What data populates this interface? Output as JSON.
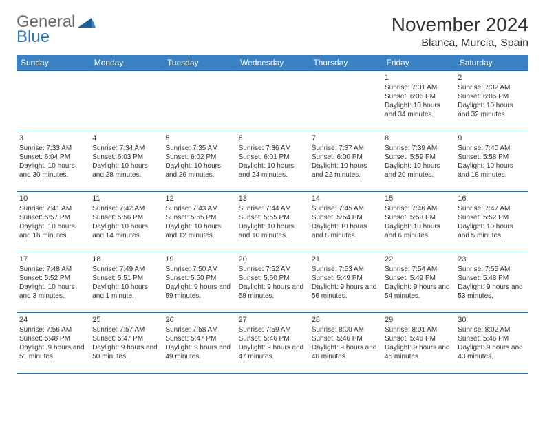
{
  "logo": {
    "text1": "General",
    "text2": "Blue"
  },
  "title": "November 2024",
  "location": "Blanca, Murcia, Spain",
  "colors": {
    "header_bg": "#3a81c4",
    "border": "#2f6ea8",
    "logo_gray": "#6b6b6b",
    "logo_blue": "#2f77b8"
  },
  "day_headers": [
    "Sunday",
    "Monday",
    "Tuesday",
    "Wednesday",
    "Thursday",
    "Friday",
    "Saturday"
  ],
  "weeks": [
    [
      null,
      null,
      null,
      null,
      null,
      {
        "n": "1",
        "sunrise": "Sunrise: 7:31 AM",
        "sunset": "Sunset: 6:06 PM",
        "day": "Daylight: 10 hours and 34 minutes."
      },
      {
        "n": "2",
        "sunrise": "Sunrise: 7:32 AM",
        "sunset": "Sunset: 6:05 PM",
        "day": "Daylight: 10 hours and 32 minutes."
      }
    ],
    [
      {
        "n": "3",
        "sunrise": "Sunrise: 7:33 AM",
        "sunset": "Sunset: 6:04 PM",
        "day": "Daylight: 10 hours and 30 minutes."
      },
      {
        "n": "4",
        "sunrise": "Sunrise: 7:34 AM",
        "sunset": "Sunset: 6:03 PM",
        "day": "Daylight: 10 hours and 28 minutes."
      },
      {
        "n": "5",
        "sunrise": "Sunrise: 7:35 AM",
        "sunset": "Sunset: 6:02 PM",
        "day": "Daylight: 10 hours and 26 minutes."
      },
      {
        "n": "6",
        "sunrise": "Sunrise: 7:36 AM",
        "sunset": "Sunset: 6:01 PM",
        "day": "Daylight: 10 hours and 24 minutes."
      },
      {
        "n": "7",
        "sunrise": "Sunrise: 7:37 AM",
        "sunset": "Sunset: 6:00 PM",
        "day": "Daylight: 10 hours and 22 minutes."
      },
      {
        "n": "8",
        "sunrise": "Sunrise: 7:39 AM",
        "sunset": "Sunset: 5:59 PM",
        "day": "Daylight: 10 hours and 20 minutes."
      },
      {
        "n": "9",
        "sunrise": "Sunrise: 7:40 AM",
        "sunset": "Sunset: 5:58 PM",
        "day": "Daylight: 10 hours and 18 minutes."
      }
    ],
    [
      {
        "n": "10",
        "sunrise": "Sunrise: 7:41 AM",
        "sunset": "Sunset: 5:57 PM",
        "day": "Daylight: 10 hours and 16 minutes."
      },
      {
        "n": "11",
        "sunrise": "Sunrise: 7:42 AM",
        "sunset": "Sunset: 5:56 PM",
        "day": "Daylight: 10 hours and 14 minutes."
      },
      {
        "n": "12",
        "sunrise": "Sunrise: 7:43 AM",
        "sunset": "Sunset: 5:55 PM",
        "day": "Daylight: 10 hours and 12 minutes."
      },
      {
        "n": "13",
        "sunrise": "Sunrise: 7:44 AM",
        "sunset": "Sunset: 5:55 PM",
        "day": "Daylight: 10 hours and 10 minutes."
      },
      {
        "n": "14",
        "sunrise": "Sunrise: 7:45 AM",
        "sunset": "Sunset: 5:54 PM",
        "day": "Daylight: 10 hours and 8 minutes."
      },
      {
        "n": "15",
        "sunrise": "Sunrise: 7:46 AM",
        "sunset": "Sunset: 5:53 PM",
        "day": "Daylight: 10 hours and 6 minutes."
      },
      {
        "n": "16",
        "sunrise": "Sunrise: 7:47 AM",
        "sunset": "Sunset: 5:52 PM",
        "day": "Daylight: 10 hours and 5 minutes."
      }
    ],
    [
      {
        "n": "17",
        "sunrise": "Sunrise: 7:48 AM",
        "sunset": "Sunset: 5:52 PM",
        "day": "Daylight: 10 hours and 3 minutes."
      },
      {
        "n": "18",
        "sunrise": "Sunrise: 7:49 AM",
        "sunset": "Sunset: 5:51 PM",
        "day": "Daylight: 10 hours and 1 minute."
      },
      {
        "n": "19",
        "sunrise": "Sunrise: 7:50 AM",
        "sunset": "Sunset: 5:50 PM",
        "day": "Daylight: 9 hours and 59 minutes."
      },
      {
        "n": "20",
        "sunrise": "Sunrise: 7:52 AM",
        "sunset": "Sunset: 5:50 PM",
        "day": "Daylight: 9 hours and 58 minutes."
      },
      {
        "n": "21",
        "sunrise": "Sunrise: 7:53 AM",
        "sunset": "Sunset: 5:49 PM",
        "day": "Daylight: 9 hours and 56 minutes."
      },
      {
        "n": "22",
        "sunrise": "Sunrise: 7:54 AM",
        "sunset": "Sunset: 5:49 PM",
        "day": "Daylight: 9 hours and 54 minutes."
      },
      {
        "n": "23",
        "sunrise": "Sunrise: 7:55 AM",
        "sunset": "Sunset: 5:48 PM",
        "day": "Daylight: 9 hours and 53 minutes."
      }
    ],
    [
      {
        "n": "24",
        "sunrise": "Sunrise: 7:56 AM",
        "sunset": "Sunset: 5:48 PM",
        "day": "Daylight: 9 hours and 51 minutes."
      },
      {
        "n": "25",
        "sunrise": "Sunrise: 7:57 AM",
        "sunset": "Sunset: 5:47 PM",
        "day": "Daylight: 9 hours and 50 minutes."
      },
      {
        "n": "26",
        "sunrise": "Sunrise: 7:58 AM",
        "sunset": "Sunset: 5:47 PM",
        "day": "Daylight: 9 hours and 49 minutes."
      },
      {
        "n": "27",
        "sunrise": "Sunrise: 7:59 AM",
        "sunset": "Sunset: 5:46 PM",
        "day": "Daylight: 9 hours and 47 minutes."
      },
      {
        "n": "28",
        "sunrise": "Sunrise: 8:00 AM",
        "sunset": "Sunset: 5:46 PM",
        "day": "Daylight: 9 hours and 46 minutes."
      },
      {
        "n": "29",
        "sunrise": "Sunrise: 8:01 AM",
        "sunset": "Sunset: 5:46 PM",
        "day": "Daylight: 9 hours and 45 minutes."
      },
      {
        "n": "30",
        "sunrise": "Sunrise: 8:02 AM",
        "sunset": "Sunset: 5:46 PM",
        "day": "Daylight: 9 hours and 43 minutes."
      }
    ]
  ]
}
